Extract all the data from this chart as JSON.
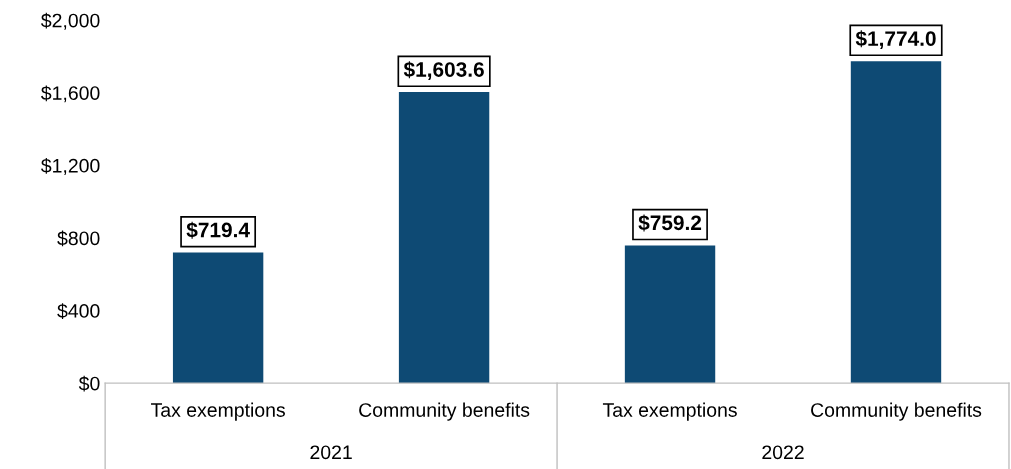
{
  "chart_data": {
    "type": "bar",
    "categories": [
      "Tax exemptions",
      "Community benefits",
      "Tax exemptions",
      "Community benefits"
    ],
    "values": [
      719.4,
      1603.6,
      759.2,
      1774.0
    ],
    "color": "#0e4a74",
    "value_labels": [
      "$719.4",
      "$1,603.6",
      "$759.2",
      "$1,774.0"
    ],
    "annotations": [
      "2021",
      "2022"
    ],
    "ylim": [
      0,
      2000
    ],
    "yticks": [
      {
        "value": 0,
        "label": "$0"
      },
      {
        "value": 400,
        "label": "$400"
      },
      {
        "value": 800,
        "label": "$800"
      },
      {
        "value": 1200,
        "label": "$1,200"
      },
      {
        "value": 1600,
        "label": "$1,600"
      },
      {
        "value": 2000,
        "label": "$2,000"
      }
    ],
    "grid": false
  }
}
